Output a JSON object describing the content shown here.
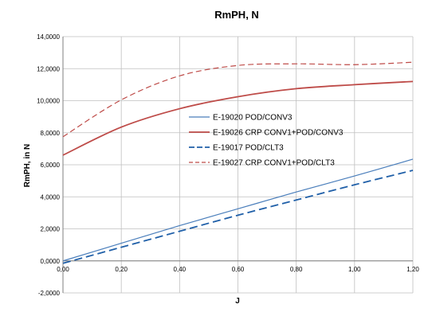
{
  "chart_data": {
    "type": "line",
    "title": "RmPH, N",
    "xlabel": "J",
    "ylabel": "RmPH, in N",
    "xlim": [
      0,
      1.2
    ],
    "ylim": [
      -2,
      14
    ],
    "x_ticks": [
      0,
      0.2,
      0.4,
      0.6,
      0.8,
      1.0,
      1.2
    ],
    "x_tick_labels": [
      "0,00",
      "0,20",
      "0,40",
      "0,60",
      "0,80",
      "1,00",
      "1,20"
    ],
    "y_ticks": [
      -2,
      0,
      2,
      4,
      6,
      8,
      10,
      12,
      14
    ],
    "y_tick_labels": [
      "-2,0000",
      "0,0000",
      "2,0000",
      "4,0000",
      "6,0000",
      "8,0000",
      "10,0000",
      "12,0000",
      "14,0000"
    ],
    "grid": true,
    "legend_position": "center-right",
    "x": [
      0,
      0.2,
      0.4,
      0.6,
      0.8,
      1.0,
      1.2
    ],
    "series": [
      {
        "name": "E-19020 POD/CONV3",
        "color": "#4a7ebb",
        "dash": "solid",
        "width": 1.2,
        "values": [
          0.0,
          1.1,
          2.2,
          3.25,
          4.3,
          5.3,
          6.35
        ]
      },
      {
        "name": "E-19026 CRP CONV1+POD/CONV3",
        "color": "#be4b48",
        "dash": "solid",
        "width": 1.8,
        "values": [
          6.6,
          8.35,
          9.5,
          10.25,
          10.75,
          11.0,
          11.2
        ]
      },
      {
        "name": "E-19017 POD/CLT3",
        "color": "#1f5fa8",
        "dash": "long-dash",
        "width": 1.8,
        "values": [
          -0.15,
          0.85,
          1.85,
          2.85,
          3.8,
          4.75,
          5.65
        ]
      },
      {
        "name": "E-19027 CRP CONV1+POD/CLT3",
        "color": "#be4b48",
        "dash": "medium-dash",
        "width": 1.2,
        "values": [
          7.75,
          10.05,
          11.55,
          12.2,
          12.3,
          12.25,
          12.4
        ]
      }
    ]
  }
}
